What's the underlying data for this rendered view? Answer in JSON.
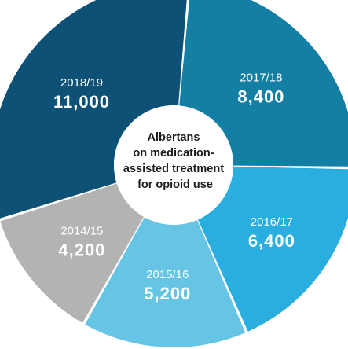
{
  "chart_data": {
    "type": "pie",
    "title": "Albertans on medication-assisted treatment for opioid use",
    "title_lines": [
      "Albertans",
      "on medication-",
      "assisted treatment",
      "for opioid use"
    ],
    "categories": [
      "2014/15",
      "2015/16",
      "2016/17",
      "2017/18",
      "2018/19"
    ],
    "values": [
      4200,
      5200,
      6400,
      8400,
      11000
    ],
    "value_labels": [
      "4,200",
      "5,200",
      "6,400",
      "8,400",
      "11,000"
    ],
    "colors": [
      "#b3b3b3",
      "#66c5e4",
      "#2aaee0",
      "#137fa5",
      "#0d5176"
    ],
    "label_colors": [
      "#ffffff",
      "#ffffff",
      "#ffffff",
      "#ffffff",
      "#ffffff"
    ],
    "legend": "none",
    "style": "donut"
  }
}
